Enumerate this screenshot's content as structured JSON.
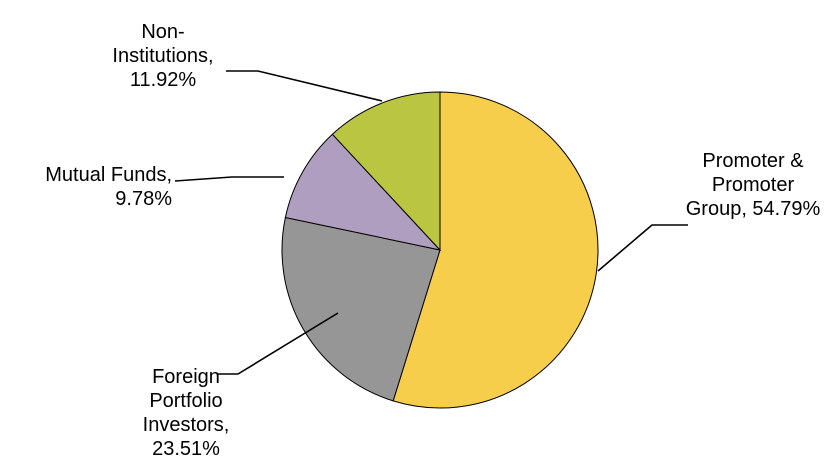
{
  "chart_data": {
    "type": "pie",
    "title": "",
    "legend": "none",
    "slices": [
      {
        "label_lines": [
          "Promoter &",
          "Promoter",
          "Group, 54.79%"
        ],
        "category": "Promoter & Promoter Group",
        "value": 54.79,
        "value_text": "54.79%",
        "color": "#F7CE4B"
      },
      {
        "label_lines": [
          "Foreign",
          "Portfolio",
          "Investors,",
          "23.51%"
        ],
        "category": "Foreign Portfolio Investors",
        "value": 23.51,
        "value_text": "23.51%",
        "color": "#969696"
      },
      {
        "label_lines": [
          "Mutual Funds,",
          "9.78%"
        ],
        "category": "Mutual Funds",
        "value": 9.78,
        "value_text": "9.78%",
        "color": "#B09EC0"
      },
      {
        "label_lines": [
          "Non-",
          "Institutions,",
          "11.92%"
        ],
        "category": "Non-Institutions",
        "value": 11.92,
        "value_text": "11.92%",
        "color": "#BAC542"
      }
    ]
  }
}
